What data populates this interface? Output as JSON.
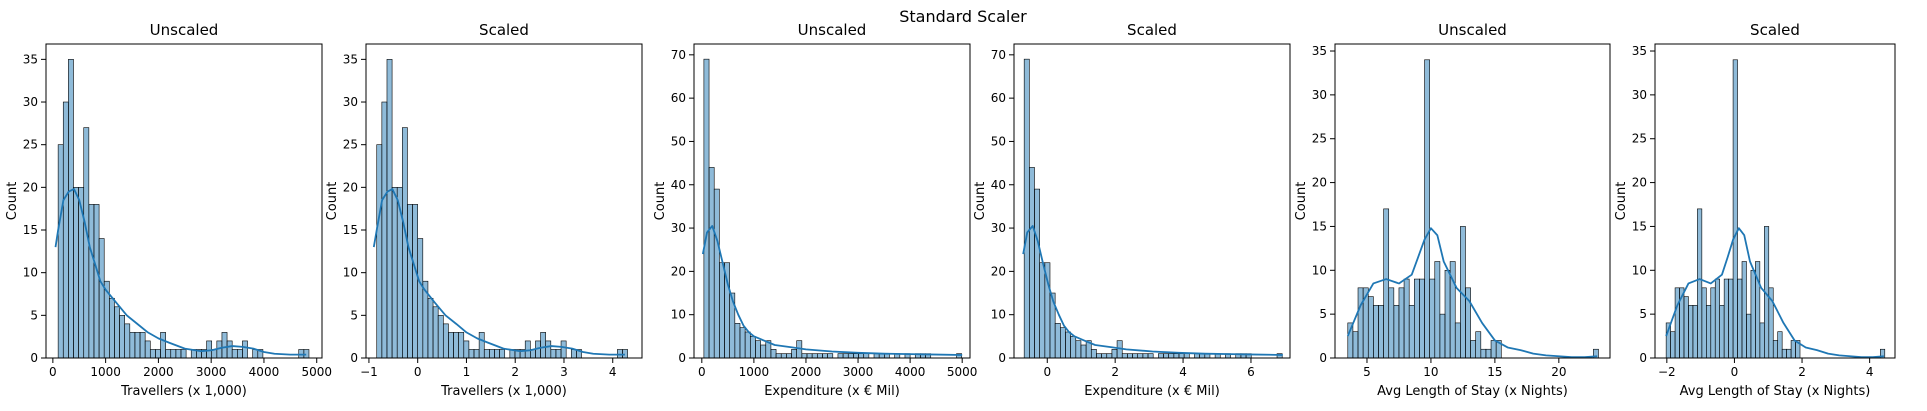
{
  "suptitle": "Standard Scaler",
  "colors": {
    "bar_fill": "#1f77b4",
    "bar_fill_opacity": 0.5,
    "bar_edge": "#000000",
    "kde_line": "#1f77b4"
  },
  "chart_data": [
    {
      "type": "bar",
      "title": "Unscaled",
      "xlabel": "Travellers (x 1,000)",
      "ylabel": "Count",
      "xlim": [
        -130,
        5100
      ],
      "ylim": [
        0,
        36.8
      ],
      "xticks": [
        0,
        1000,
        2000,
        3000,
        4000,
        5000
      ],
      "yticks": [
        0,
        5,
        10,
        15,
        20,
        25,
        30,
        35
      ],
      "bins": {
        "start": 100,
        "width": 97,
        "counts": [
          25,
          30,
          35,
          20,
          20,
          27,
          18,
          18,
          14,
          9,
          7,
          6,
          5,
          4,
          3,
          3,
          3,
          2,
          1,
          1,
          3,
          1,
          1,
          1,
          1,
          0,
          1,
          1,
          1,
          2,
          1,
          2,
          3,
          2,
          1,
          1,
          2,
          0,
          1,
          1,
          0,
          0,
          0,
          0,
          0,
          0,
          0,
          1,
          1
        ]
      },
      "kde": {
        "x": [
          50,
          100,
          200,
          300,
          400,
          500,
          600,
          700,
          800,
          900,
          1000,
          1200,
          1400,
          1600,
          1800,
          2000,
          2200,
          2500,
          2800,
          3000,
          3200,
          3400,
          3600,
          3800,
          4000,
          4200,
          4500,
          4800
        ],
        "y": [
          13,
          15,
          18.5,
          19.5,
          19.8,
          18.5,
          16,
          13,
          11,
          9,
          8,
          6.5,
          5,
          4,
          3,
          2.3,
          1.8,
          1.1,
          0.8,
          0.9,
          1.2,
          1.4,
          1.3,
          1.1,
          0.7,
          0.5,
          0.4,
          0.4
        ]
      }
    },
    {
      "type": "bar",
      "title": "Scaled",
      "xlabel": "Travellers (x 1,000)",
      "ylabel": "Count",
      "xlim": [
        -1.06,
        4.6
      ],
      "ylim": [
        0,
        36.8
      ],
      "xticks": [
        -1,
        0,
        1,
        2,
        3,
        4
      ],
      "yticks": [
        0,
        5,
        10,
        15,
        20,
        25,
        30,
        35
      ],
      "bins": {
        "start": -0.84,
        "width": 0.105,
        "counts": [
          25,
          30,
          35,
          20,
          20,
          27,
          18,
          18,
          14,
          9,
          7,
          6,
          5,
          4,
          3,
          3,
          3,
          2,
          1,
          1,
          3,
          1,
          1,
          1,
          1,
          0,
          1,
          1,
          1,
          2,
          1,
          2,
          3,
          2,
          1,
          1,
          2,
          0,
          1,
          1,
          0,
          0,
          0,
          0,
          0,
          0,
          0,
          1,
          1
        ]
      },
      "kde": {
        "x": [
          -0.9,
          -0.84,
          -0.73,
          -0.62,
          -0.52,
          -0.41,
          -0.3,
          -0.19,
          -0.08,
          0.03,
          0.14,
          0.35,
          0.57,
          0.79,
          1.0,
          1.22,
          1.44,
          1.76,
          2.09,
          2.3,
          2.52,
          2.74,
          2.95,
          3.17,
          3.39,
          3.6,
          3.93,
          4.25
        ],
        "y": [
          13,
          15,
          18.5,
          19.5,
          19.8,
          18.5,
          16,
          13,
          11,
          9,
          8,
          6.5,
          5,
          4,
          3,
          2.3,
          1.8,
          1.1,
          0.8,
          0.9,
          1.2,
          1.4,
          1.3,
          1.1,
          0.7,
          0.5,
          0.4,
          0.4
        ]
      }
    },
    {
      "type": "bar",
      "title": "Unscaled",
      "xlabel": "Expenditure (x € Mil)",
      "ylabel": "Count",
      "xlim": [
        -150,
        5150
      ],
      "ylim": [
        0,
        72.5
      ],
      "xticks": [
        0,
        1000,
        2000,
        3000,
        4000,
        5000
      ],
      "yticks": [
        0,
        10,
        20,
        30,
        40,
        50,
        60,
        70
      ],
      "bins": {
        "start": 40,
        "width": 99,
        "counts": [
          69,
          44,
          39,
          22,
          22,
          15,
          8,
          7,
          6,
          5,
          4,
          3,
          4,
          2,
          1,
          1,
          1,
          2,
          4,
          1,
          1,
          1,
          1,
          1,
          1,
          0,
          1,
          1,
          1,
          1,
          1,
          1,
          0,
          1,
          1,
          1,
          0,
          1,
          0,
          1,
          0,
          1,
          1,
          1,
          0,
          0,
          0,
          0,
          0,
          1
        ]
      },
      "kde": {
        "x": [
          20,
          100,
          200,
          300,
          400,
          500,
          600,
          700,
          800,
          900,
          1000,
          1200,
          1400,
          1700,
          2000,
          2500,
          3000,
          3500,
          4000,
          4500,
          5000
        ],
        "y": [
          24,
          29,
          30.5,
          27,
          22,
          17,
          13,
          10,
          7.5,
          6,
          5,
          4,
          3,
          2.5,
          2,
          1.5,
          1.2,
          1,
          0.9,
          0.8,
          0.7
        ]
      }
    },
    {
      "type": "bar",
      "title": "Scaled",
      "xlabel": "Expenditure (x € Mil)",
      "ylabel": "Count",
      "xlim": [
        -0.98,
        7.15
      ],
      "ylim": [
        0,
        72.5
      ],
      "xticks": [
        0,
        2,
        4,
        6
      ],
      "yticks": [
        0,
        10,
        20,
        30,
        40,
        50,
        60,
        70
      ],
      "bins": {
        "start": -0.68,
        "width": 0.152,
        "counts": [
          69,
          44,
          39,
          22,
          22,
          15,
          8,
          7,
          6,
          5,
          4,
          3,
          4,
          2,
          1,
          1,
          1,
          2,
          4,
          1,
          1,
          1,
          1,
          1,
          1,
          0,
          1,
          1,
          1,
          1,
          1,
          1,
          0,
          1,
          1,
          1,
          0,
          1,
          0,
          1,
          0,
          1,
          1,
          1,
          0,
          0,
          0,
          0,
          0,
          1
        ]
      },
      "kde": {
        "x": [
          -0.71,
          -0.59,
          -0.43,
          -0.28,
          -0.13,
          0.03,
          0.18,
          0.34,
          0.49,
          0.64,
          0.8,
          1.1,
          1.41,
          1.87,
          2.33,
          3.1,
          3.87,
          4.64,
          5.4,
          6.17,
          6.94
        ],
        "y": [
          24,
          29,
          30.5,
          27,
          22,
          17,
          13,
          10,
          7.5,
          6,
          5,
          4,
          3,
          2.5,
          2,
          1.5,
          1.2,
          1,
          0.9,
          0.8,
          0.7
        ]
      }
    },
    {
      "type": "bar",
      "title": "Unscaled",
      "xlabel": "Avg Length of Stay (x Nights)",
      "ylabel": "Count",
      "xlim": [
        2.5,
        24.0
      ],
      "ylim": [
        0,
        35.8
      ],
      "xticks": [
        5,
        10,
        15,
        20
      ],
      "yticks": [
        0,
        5,
        10,
        15,
        20,
        25,
        30,
        35
      ],
      "bins": {
        "start": 3.5,
        "width": 0.4,
        "counts": [
          4,
          3,
          8,
          8,
          7,
          6,
          6,
          17,
          8,
          6,
          8,
          9,
          6,
          9,
          9,
          34,
          9,
          11,
          5,
          10,
          11,
          4,
          15,
          8,
          2,
          3,
          1,
          1,
          2,
          2,
          0,
          0,
          0,
          0,
          0,
          0,
          0,
          0,
          0,
          0,
          0,
          0,
          0,
          0,
          0,
          0,
          0,
          0,
          1
        ]
      },
      "kde": {
        "x": [
          3.5,
          4.5,
          5.5,
          6.5,
          7.5,
          8.5,
          9.0,
          9.5,
          10.0,
          10.5,
          11.0,
          12.0,
          13.0,
          14.0,
          15.0,
          16.0,
          17.0,
          18.0,
          19.0,
          20.0,
          21.0,
          22.0,
          23.0
        ],
        "y": [
          2.5,
          6,
          8.5,
          9,
          8.5,
          9.5,
          11.5,
          13.5,
          14.8,
          14,
          11,
          8,
          6.5,
          4,
          2,
          1.2,
          0.9,
          0.5,
          0.3,
          0.2,
          0.1,
          0.1,
          0.2
        ]
      }
    },
    {
      "type": "bar",
      "title": "Scaled",
      "xlabel": "Avg Length of Stay (x Nights)",
      "ylabel": "Count",
      "xlim": [
        -2.35,
        4.75
      ],
      "ylim": [
        0,
        35.8
      ],
      "xticks": [
        -2,
        0,
        2,
        4
      ],
      "yticks": [
        0,
        5,
        10,
        15,
        20,
        25,
        30,
        35
      ],
      "bins": {
        "start": -2.02,
        "width": 0.132,
        "counts": [
          4,
          3,
          8,
          8,
          7,
          6,
          6,
          17,
          8,
          6,
          8,
          9,
          6,
          9,
          9,
          34,
          9,
          11,
          5,
          10,
          11,
          4,
          15,
          8,
          2,
          3,
          1,
          1,
          2,
          2,
          0,
          0,
          0,
          0,
          0,
          0,
          0,
          0,
          0,
          0,
          0,
          0,
          0,
          0,
          0,
          0,
          0,
          0,
          1
        ]
      },
      "kde": {
        "x": [
          -2.02,
          -1.69,
          -1.36,
          -1.03,
          -0.7,
          -0.37,
          -0.2,
          -0.04,
          0.13,
          0.29,
          0.46,
          0.79,
          1.12,
          1.45,
          1.78,
          2.11,
          2.44,
          2.77,
          3.1,
          3.43,
          3.76,
          4.09,
          4.42
        ],
        "y": [
          2.5,
          6,
          8.5,
          9,
          8.5,
          9.5,
          11.5,
          13.5,
          14.8,
          14,
          11,
          8,
          6.5,
          4,
          2,
          1.2,
          0.9,
          0.5,
          0.3,
          0.2,
          0.1,
          0.1,
          0.2
        ]
      }
    }
  ]
}
